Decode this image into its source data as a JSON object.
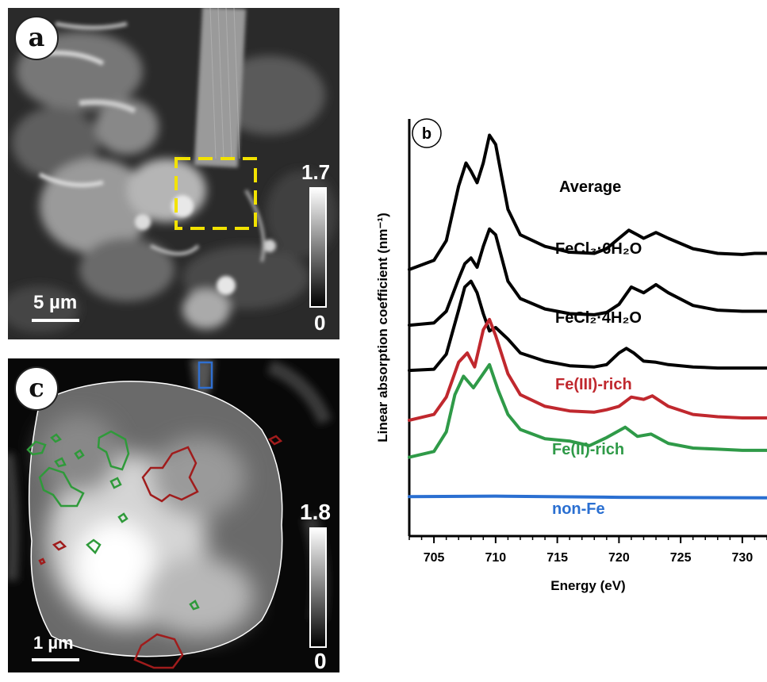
{
  "panel_a": {
    "letter": "a",
    "colorbar": {
      "max": "1.7",
      "min": "0"
    },
    "scalebar": "5 µm",
    "roi_color": "#f2e200"
  },
  "panel_c": {
    "letter": "c",
    "colorbar": {
      "max": "1.8",
      "min": "0"
    },
    "scalebar": "1 µm",
    "contour_colors": {
      "fe3": "#a01c1c",
      "fe2": "#2f9a3a",
      "nonfe": "#2f6fd0"
    }
  },
  "chart_data": {
    "type": "line",
    "panel_label": "b",
    "xlabel": "Energy (eV)",
    "ylabel": "Linear absorption coefficient (nm⁻¹)",
    "xlim": [
      703,
      732
    ],
    "xticks": [
      705,
      710,
      715,
      720,
      725,
      730
    ],
    "series": [
      {
        "name": "Average",
        "color": "#000000",
        "x": [
          703,
          705,
          706,
          707,
          707.6,
          708,
          708.5,
          709,
          709.5,
          710,
          710.5,
          711,
          712,
          714,
          716,
          718,
          719,
          720,
          720.8,
          721.5,
          722,
          723,
          724,
          726,
          728,
          730,
          731,
          732
        ],
        "y": [
          1.7,
          1.78,
          1.95,
          2.42,
          2.62,
          2.55,
          2.45,
          2.62,
          2.86,
          2.78,
          2.5,
          2.22,
          2.0,
          1.9,
          1.85,
          1.84,
          1.88,
          1.97,
          2.04,
          2.0,
          1.97,
          2.02,
          1.97,
          1.88,
          1.84,
          1.83,
          1.84,
          1.84
        ]
      },
      {
        "name": "FeCl₃·6H₂O",
        "color": "#000000",
        "x": [
          703,
          705,
          706,
          707,
          707.5,
          708,
          708.5,
          709,
          709.5,
          710,
          710.5,
          711,
          712,
          714,
          716,
          718,
          719,
          720,
          721,
          722,
          723,
          724,
          726,
          728,
          730,
          732
        ],
        "y": [
          1.22,
          1.24,
          1.34,
          1.62,
          1.75,
          1.8,
          1.72,
          1.9,
          2.05,
          2.0,
          1.8,
          1.6,
          1.45,
          1.36,
          1.32,
          1.31,
          1.33,
          1.4,
          1.55,
          1.5,
          1.57,
          1.5,
          1.39,
          1.35,
          1.34,
          1.34
        ]
      },
      {
        "name": "FeCl₂·4H₂O",
        "color": "#000000",
        "x": [
          703,
          705,
          706,
          707,
          707.5,
          708,
          708.5,
          709,
          709.5,
          710,
          711,
          712,
          714,
          716,
          718,
          719,
          720,
          720.6,
          721.2,
          722,
          723,
          724,
          726,
          728,
          730,
          732
        ],
        "y": [
          0.83,
          0.84,
          0.97,
          1.35,
          1.55,
          1.6,
          1.5,
          1.32,
          1.17,
          1.2,
          1.1,
          0.98,
          0.91,
          0.87,
          0.86,
          0.88,
          0.98,
          1.02,
          0.98,
          0.91,
          0.9,
          0.88,
          0.86,
          0.85,
          0.85,
          0.85
        ]
      },
      {
        "name": "Fe(III)-rich",
        "color": "#c0282e",
        "x": [
          703,
          705,
          706,
          707,
          707.7,
          708.3,
          709,
          709.5,
          710,
          711,
          712,
          714,
          716,
          718,
          719,
          720,
          721,
          722,
          722.7,
          724,
          726,
          728,
          730,
          732
        ],
        "y": [
          0.4,
          0.45,
          0.6,
          0.9,
          0.98,
          0.86,
          1.18,
          1.27,
          1.13,
          0.8,
          0.62,
          0.52,
          0.48,
          0.47,
          0.49,
          0.52,
          0.6,
          0.58,
          0.61,
          0.52,
          0.45,
          0.43,
          0.42,
          0.42
        ]
      },
      {
        "name": "Fe(II)-rich",
        "color": "#2f9a48",
        "x": [
          703,
          705,
          706,
          706.7,
          707.4,
          708.2,
          709.5,
          710.2,
          711,
          712,
          714,
          716,
          717.6,
          719,
          720.5,
          721.5,
          722.6,
          724,
          726,
          728,
          730,
          732
        ],
        "y": [
          0.08,
          0.13,
          0.3,
          0.62,
          0.78,
          0.68,
          0.88,
          0.66,
          0.45,
          0.32,
          0.24,
          0.22,
          0.18,
          0.25,
          0.34,
          0.26,
          0.28,
          0.2,
          0.16,
          0.15,
          0.14,
          0.14
        ]
      },
      {
        "name": "non-Fe",
        "color": "#2a6fd1",
        "x": [
          703,
          710,
          720,
          732
        ],
        "y": [
          -0.26,
          -0.255,
          -0.265,
          -0.27
        ]
      }
    ]
  }
}
